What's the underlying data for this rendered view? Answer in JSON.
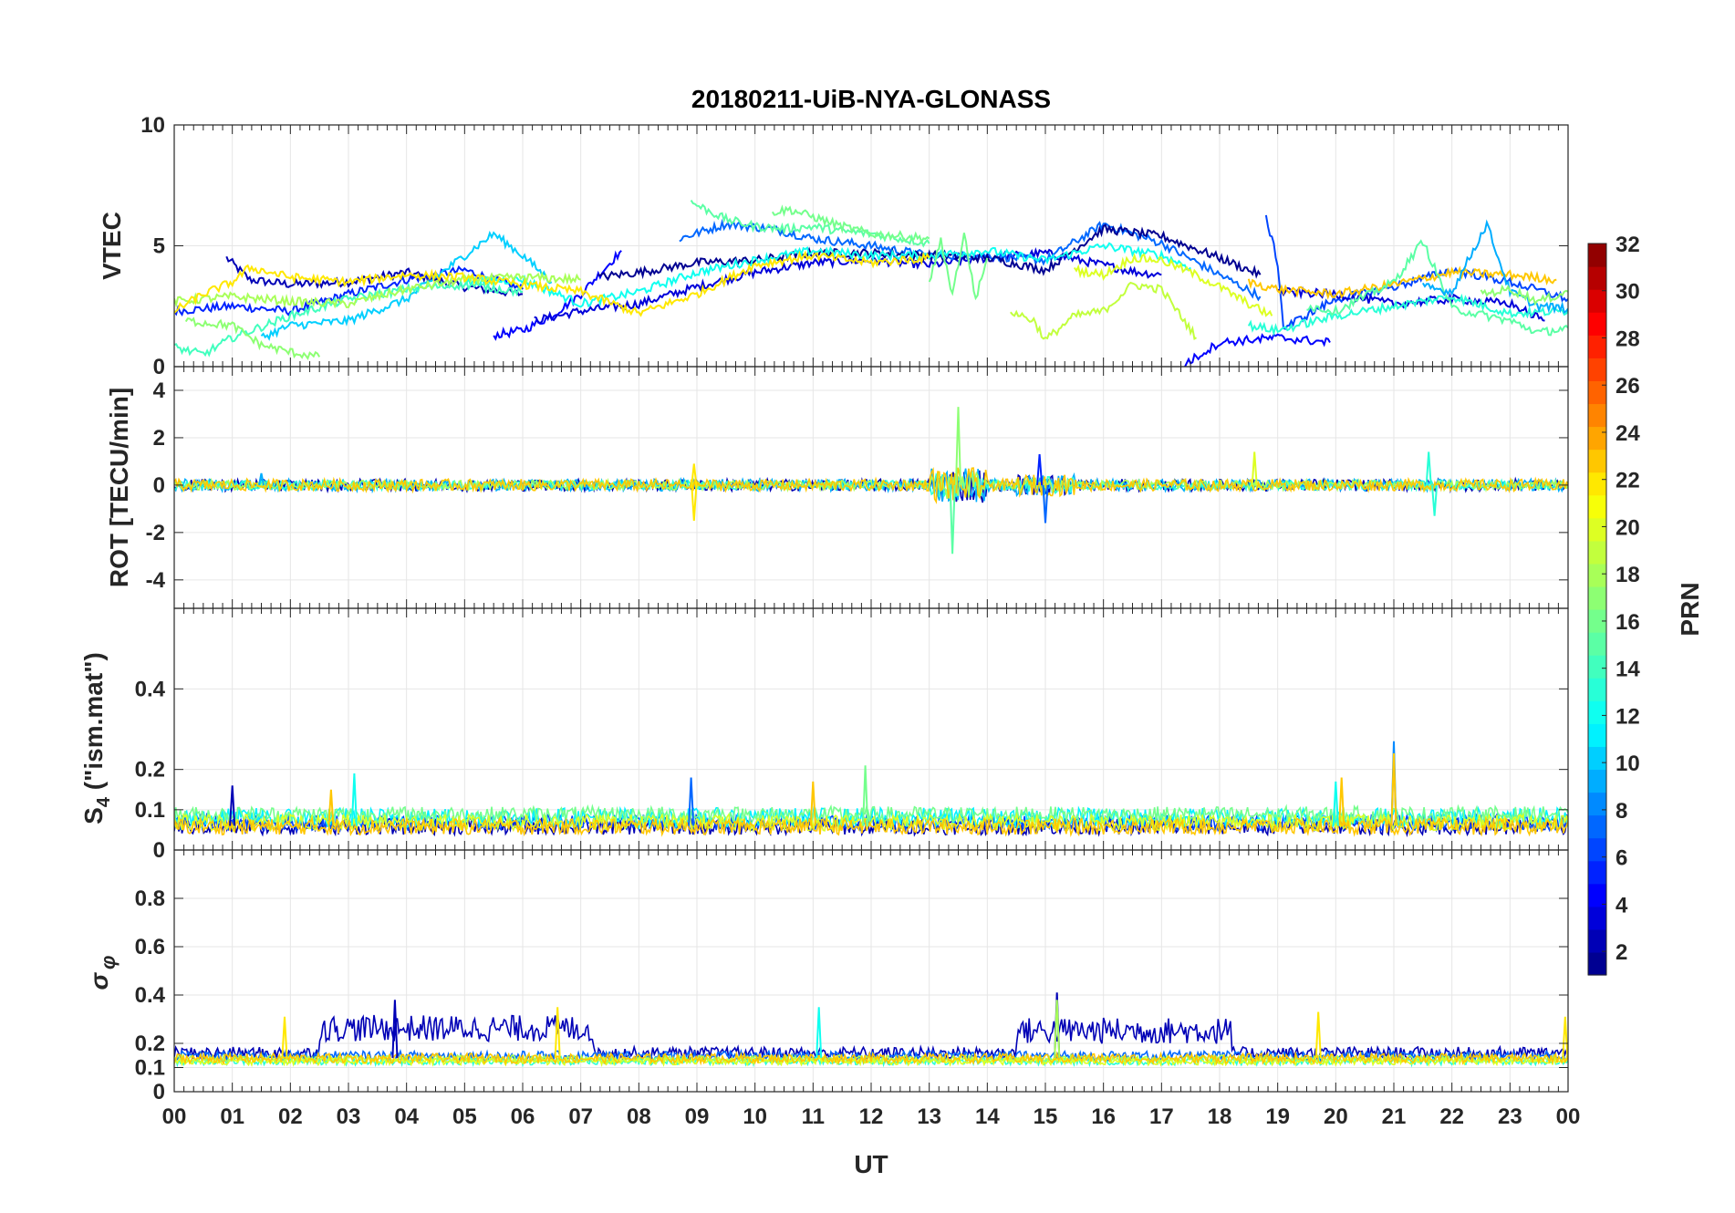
{
  "chart_data": {
    "type": "line",
    "title": "20180211-UiB-NYA-GLONASS",
    "xlabel": "UT",
    "x_unit": "hours UT",
    "xlim": [
      0,
      24
    ],
    "x_tick_labels": [
      "00",
      "01",
      "02",
      "03",
      "04",
      "05",
      "06",
      "07",
      "08",
      "09",
      "10",
      "11",
      "12",
      "13",
      "14",
      "15",
      "16",
      "17",
      "18",
      "19",
      "20",
      "21",
      "22",
      "23",
      "00"
    ],
    "grid": true,
    "colorbar": {
      "label": "PRN",
      "range": [
        1,
        32
      ],
      "ticks": [
        2,
        4,
        6,
        8,
        10,
        12,
        14,
        16,
        18,
        20,
        22,
        24,
        26,
        28,
        30,
        32
      ],
      "colormap": "jet",
      "colormap_stops": [
        "#000080",
        "#0000ff",
        "#00ffff",
        "#ffff00",
        "#ff0000",
        "#800000"
      ]
    },
    "panels": [
      {
        "ylabel": "VTEC",
        "ylim": [
          0,
          10
        ],
        "yticks": [
          0,
          5,
          10
        ],
        "ytick_labels": [
          "0",
          "5",
          "10"
        ],
        "series": [
          {
            "prn": 2,
            "x": [
              0.9,
              1.3,
              2.0,
              3.0,
              4.0,
              5.0,
              6.0
            ],
            "y": [
              4.5,
              3.6,
              3.4,
              3.5,
              3.9,
              3.3,
              3.0
            ]
          },
          {
            "prn": 5,
            "x": [
              0.0,
              1.0,
              2.0,
              3.0,
              4.0,
              5.0,
              6.0
            ],
            "y": [
              2.3,
              2.5,
              2.3,
              3.0,
              3.6,
              4.0,
              3.2
            ]
          },
          {
            "prn": 4,
            "x": [
              5.5,
              6.0,
              6.5,
              7.0,
              7.7
            ],
            "y": [
              1.3,
              1.5,
              2.1,
              3.0,
              4.8
            ]
          },
          {
            "prn": 3,
            "x": [
              6.2,
              7.0,
              8.0,
              9.0,
              10.0,
              11.0,
              12.0,
              13.0,
              14.0,
              15.0,
              16.0,
              16.6,
              17.0
            ],
            "y": [
              1.9,
              2.3,
              2.6,
              3.3,
              3.9,
              4.3,
              4.4,
              4.2,
              4.5,
              4.7,
              4.2,
              3.9,
              3.8
            ]
          },
          {
            "prn": 7,
            "x": [
              8.7,
              9.5,
              10.3,
              11.0,
              12.0,
              13.0,
              14.0,
              15.0,
              16.0,
              17.0,
              18.0,
              18.7
            ],
            "y": [
              5.3,
              5.9,
              5.7,
              5.3,
              5.0,
              4.6,
              4.6,
              4.4,
              5.9,
              5.1,
              3.8,
              2.9
            ]
          },
          {
            "prn": 1,
            "x": [
              7.3,
              8.0,
              9.0,
              10.0,
              11.0,
              12.0,
              13.0,
              14.0,
              15.0,
              16.0,
              17.0,
              18.0,
              18.7
            ],
            "y": [
              3.7,
              3.9,
              4.3,
              4.4,
              4.7,
              4.7,
              4.6,
              4.5,
              4.0,
              5.7,
              5.4,
              4.5,
              3.8
            ]
          },
          {
            "prn": 10,
            "x": [
              1.5,
              2.0,
              3.0,
              4.0,
              5.0,
              5.5,
              6.0,
              6.5
            ],
            "y": [
              1.2,
              1.7,
              1.9,
              2.8,
              4.6,
              5.5,
              4.6,
              3.5
            ]
          },
          {
            "prn": 12,
            "x": [
              5.0,
              6.0,
              7.0,
              8.0,
              9.0,
              10.0,
              11.0,
              12.0,
              13.0,
              14.0,
              15.0,
              16.0,
              17.0,
              17.5
            ],
            "y": [
              3.5,
              3.6,
              2.6,
              3.1,
              3.9,
              4.4,
              4.8,
              4.6,
              4.6,
              4.8,
              4.4,
              5.0,
              4.6,
              4.1
            ]
          },
          {
            "prn": 15,
            "x": [
              8.9,
              9.5,
              10.0,
              10.5,
              11.0,
              11.5,
              12.0,
              12.5,
              13.0
            ],
            "y": [
              6.8,
              6.1,
              5.8,
              5.7,
              5.8,
              5.6,
              5.5,
              5.3,
              5.1
            ]
          },
          {
            "prn": 16,
            "x": [
              10.3,
              10.6,
              11.0,
              11.5,
              12.0,
              12.5,
              13.0
            ],
            "y": [
              6.4,
              6.5,
              6.2,
              5.8,
              5.5,
              5.4,
              5.3
            ]
          },
          {
            "prn": 14,
            "x": [
              0.0,
              0.5,
              1.0,
              2.0,
              3.0,
              4.0,
              5.0,
              6.0
            ],
            "y": [
              0.8,
              0.5,
              1.2,
              2.1,
              2.8,
              3.2,
              3.4,
              3.1
            ]
          },
          {
            "prn": 18,
            "x": [
              0.0,
              1.0,
              2.0,
              3.0,
              4.0,
              5.0,
              6.0,
              7.0
            ],
            "y": [
              2.7,
              2.9,
              2.7,
              2.6,
              3.2,
              3.6,
              3.7,
              3.6
            ]
          },
          {
            "prn": 17,
            "x": [
              0.2,
              1.0,
              1.5,
              2.0,
              2.5
            ],
            "y": [
              1.9,
              1.7,
              0.9,
              0.6,
              0.4
            ]
          },
          {
            "prn": 22,
            "x": [
              0.0,
              0.5,
              1.0,
              1.3,
              2.0,
              3.0,
              4.0,
              5.0,
              6.0,
              7.0,
              8.0,
              9.0,
              10.0,
              11.0,
              12.0,
              13.0
            ],
            "y": [
              2.3,
              3.0,
              3.5,
              4.1,
              3.7,
              3.5,
              3.8,
              3.7,
              3.4,
              3.1,
              2.2,
              3.0,
              4.2,
              4.6,
              4.3,
              4.5
            ]
          },
          {
            "prn": 19,
            "x": [
              14.4,
              14.8,
              15.0,
              15.5,
              16.0,
              16.5,
              17.0,
              17.6
            ],
            "y": [
              2.3,
              1.9,
              1.1,
              2.1,
              2.3,
              3.4,
              3.2,
              1.2
            ]
          },
          {
            "prn": 20,
            "x": [
              15.5,
              16.0,
              16.5,
              17.0,
              17.5,
              18.0,
              18.5,
              18.9
            ],
            "y": [
              4.0,
              3.8,
              4.5,
              4.4,
              3.9,
              3.3,
              2.6,
              2.1
            ]
          },
          {
            "prn": 16,
            "x": [
              13.0,
              13.2,
              13.4,
              13.6,
              13.8,
              14.0
            ],
            "y": [
              3.5,
              5.2,
              3.0,
              5.5,
              2.8,
              4.5
            ]
          },
          {
            "prn": 4,
            "x": [
              17.4,
              18.0,
              19.0,
              19.9
            ],
            "y": [
              0.1,
              1.0,
              1.2,
              1.0
            ]
          },
          {
            "prn": 6,
            "x": [
              18.8,
              19.0,
              19.1,
              20.0,
              21.0,
              22.0,
              23.0,
              24.0
            ],
            "y": [
              6.2,
              4.3,
              1.6,
              2.8,
              3.3,
              4.0,
              3.5,
              2.8
            ]
          },
          {
            "prn": 3,
            "x": [
              19.0,
              20.0,
              21.0,
              22.0,
              23.0,
              23.6
            ],
            "y": [
              3.1,
              3.0,
              2.6,
              2.8,
              2.6,
              1.9
            ]
          },
          {
            "prn": 23,
            "x": [
              18.5,
              19.0,
              20.0,
              21.0,
              22.0,
              23.0,
              23.8
            ],
            "y": [
              3.5,
              3.2,
              3.0,
              3.4,
              3.9,
              3.8,
              3.6
            ]
          },
          {
            "prn": 13,
            "x": [
              18.5,
              19.0,
              20.0,
              21.0,
              22.0,
              23.0,
              24.0
            ],
            "y": [
              1.7,
              1.5,
              2.1,
              2.5,
              2.9,
              2.2,
              2.3
            ]
          },
          {
            "prn": 15,
            "x": [
              19.5,
              20.0,
              21.0,
              21.5,
              22.0,
              23.0,
              23.5,
              24.0
            ],
            "y": [
              2.5,
              2.3,
              3.5,
              5.2,
              2.4,
              1.9,
              1.4,
              1.6
            ]
          },
          {
            "prn": 9,
            "x": [
              21.5,
              22.0,
              22.6,
              23.0,
              23.5,
              24.0
            ],
            "y": [
              3.3,
              3.1,
              5.9,
              3.1,
              2.5,
              2.4
            ]
          },
          {
            "prn": 17,
            "x": [
              22.5,
              23.0,
              23.5,
              24.0
            ],
            "y": [
              3.0,
              3.2,
              2.7,
              3.1
            ]
          }
        ]
      },
      {
        "ylabel": "ROT [TECU/min]",
        "ylim": [
          -5.2,
          5
        ],
        "yticks": [
          -4,
          -2,
          0,
          2,
          4
        ],
        "ytick_labels": [
          "-4",
          "-2",
          "0",
          "2",
          "4"
        ],
        "description_series": "noise around zero, burst between 13 and 14 UT",
        "series": [
          {
            "prn": 2,
            "x_range": [
              0,
              24
            ],
            "amplitude": 0.25
          },
          {
            "prn": 9,
            "x_range": [
              0,
              24
            ],
            "amplitude": 0.25
          },
          {
            "prn": 13,
            "x_range": [
              0,
              24
            ],
            "amplitude": 0.2
          },
          {
            "prn": 18,
            "x_range": [
              0,
              24
            ],
            "amplitude": 0.2
          },
          {
            "prn": 23,
            "x_range": [
              0,
              24
            ],
            "amplitude": 0.25
          }
        ],
        "peaks": [
          {
            "prn": 17,
            "x": 13.5,
            "y": 3.3
          },
          {
            "prn": 15,
            "x": 13.4,
            "y": -2.9
          },
          {
            "prn": 22,
            "x": 8.95,
            "y": -1.5
          },
          {
            "prn": 22,
            "x": 8.95,
            "y": 0.9
          },
          {
            "prn": 7,
            "x": 15.0,
            "y": -1.6
          },
          {
            "prn": 5,
            "x": 14.9,
            "y": 1.3
          },
          {
            "prn": 20,
            "x": 18.6,
            "y": 1.4
          },
          {
            "prn": 13,
            "x": 21.6,
            "y": 1.4
          },
          {
            "prn": 13,
            "x": 21.7,
            "y": -1.3
          },
          {
            "prn": 9,
            "x": 1.5,
            "y": 0.5
          }
        ]
      },
      {
        "ylabel": "S4 (\"ism.mat\")",
        "ylabel_main": "S",
        "ylabel_sub": "4",
        "ylabel_rest": " (\"ism.mat\")",
        "ylim": [
          0,
          0.6
        ],
        "yticks": [
          0,
          0.1,
          0.2,
          0.4
        ],
        "ytick_labels": [
          "0",
          "0.1",
          "0.2",
          "0.4"
        ],
        "description_series": "baseline 0.04–0.12 with scattered bumps; spike near 21 UT",
        "series": [
          {
            "prn": 2,
            "x_range": [
              0,
              24
            ],
            "base": 0.05,
            "amplitude": 0.04
          },
          {
            "prn": 6,
            "x_range": [
              0,
              24
            ],
            "base": 0.06,
            "amplitude": 0.04
          },
          {
            "prn": 11,
            "x_range": [
              0,
              24
            ],
            "base": 0.07,
            "amplitude": 0.05
          },
          {
            "prn": 16,
            "x_range": [
              0,
              24
            ],
            "base": 0.08,
            "amplitude": 0.04
          },
          {
            "prn": 20,
            "x_range": [
              0,
              24
            ],
            "base": 0.06,
            "amplitude": 0.04
          },
          {
            "prn": 23,
            "x_range": [
              0,
              24
            ],
            "base": 0.05,
            "amplitude": 0.04
          }
        ],
        "peaks": [
          {
            "prn": 8,
            "x": 21.0,
            "y": 0.27
          },
          {
            "prn": 23,
            "x": 21.0,
            "y": 0.24
          },
          {
            "prn": 23,
            "x": 20.1,
            "y": 0.18
          },
          {
            "prn": 23,
            "x": 2.7,
            "y": 0.15
          },
          {
            "prn": 12,
            "x": 3.1,
            "y": 0.19
          },
          {
            "prn": 16,
            "x": 11.9,
            "y": 0.21
          },
          {
            "prn": 23,
            "x": 11.0,
            "y": 0.17
          },
          {
            "prn": 2,
            "x": 1.0,
            "y": 0.16
          },
          {
            "prn": 7,
            "x": 8.9,
            "y": 0.18
          },
          {
            "prn": 12,
            "x": 20.0,
            "y": 0.17
          }
        ]
      },
      {
        "ylabel": "σ φ",
        "ylabel_sigma": "σ",
        "ylabel_sub": "φ",
        "ylim": [
          0,
          1
        ],
        "yticks": [
          0,
          0.1,
          0.2,
          0.4,
          0.6,
          0.8
        ],
        "ytick_labels": [
          "0",
          "0.1",
          "0.2",
          "0.4",
          "0.6",
          "0.8"
        ],
        "description_series": "baseline near 0.1–0.2; PRN 2 elevated 0.2–0.35 during 03–07 and 14.5–18 UT",
        "series": [
          {
            "prn": 2,
            "x_range": [
              0,
              24
            ],
            "base": 0.15,
            "amplitude": 0.05,
            "elevated": [
              [
                2.5,
                7.2,
                0.24
              ],
              [
                14.5,
                18.2,
                0.23
              ]
            ]
          },
          {
            "prn": 7,
            "x_range": [
              0,
              24
            ],
            "base": 0.14,
            "amplitude": 0.04
          },
          {
            "prn": 13,
            "x_range": [
              0,
              24
            ],
            "base": 0.12,
            "amplitude": 0.03
          },
          {
            "prn": 18,
            "x_range": [
              0,
              24
            ],
            "base": 0.13,
            "amplitude": 0.03
          },
          {
            "prn": 20,
            "x_range": [
              0,
              24
            ],
            "base": 0.12,
            "amplitude": 0.03
          },
          {
            "prn": 23,
            "x_range": [
              0,
              24
            ],
            "base": 0.13,
            "amplitude": 0.04
          }
        ],
        "peaks": [
          {
            "prn": 2,
            "x": 15.2,
            "y": 0.41
          },
          {
            "prn": 18,
            "x": 15.2,
            "y": 0.38
          },
          {
            "prn": 2,
            "x": 3.8,
            "y": 0.38
          },
          {
            "prn": 22,
            "x": 1.9,
            "y": 0.31
          },
          {
            "prn": 22,
            "x": 6.6,
            "y": 0.35
          },
          {
            "prn": 12,
            "x": 11.1,
            "y": 0.35
          },
          {
            "prn": 22,
            "x": 19.7,
            "y": 0.33
          },
          {
            "prn": 22,
            "x": 23.95,
            "y": 0.31
          }
        ]
      }
    ]
  }
}
